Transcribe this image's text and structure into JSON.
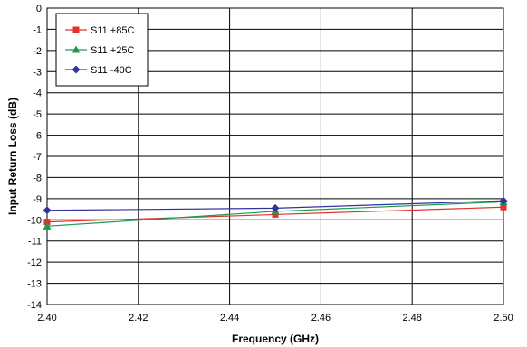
{
  "chart_data": {
    "type": "line",
    "title": "",
    "xlabel": "Frequency (GHz)",
    "ylabel": "Input Return Loss (dB)",
    "xlim": [
      2.4,
      2.5
    ],
    "ylim": [
      -14,
      0
    ],
    "xticks": [
      "2.40",
      "2.42",
      "2.44",
      "2.46",
      "2.48",
      "2.50"
    ],
    "xtick_values": [
      2.4,
      2.42,
      2.44,
      2.46,
      2.48,
      2.5
    ],
    "yticks": [
      "0",
      "-1",
      "-2",
      "-3",
      "-4",
      "-5",
      "-6",
      "-7",
      "-8",
      "-9",
      "-10",
      "-11",
      "-12",
      "-13",
      "-14"
    ],
    "ytick_values": [
      0,
      -1,
      -2,
      -3,
      -4,
      -5,
      -6,
      -7,
      -8,
      -9,
      -10,
      -11,
      -12,
      -13,
      -14
    ],
    "grid": true,
    "legend_position": "top-left",
    "x": [
      2.4,
      2.45,
      2.5
    ],
    "series": [
      {
        "name": "S11 +85C",
        "color": "#e03030",
        "marker": "square",
        "values": [
          -10.1,
          -9.75,
          -9.4
        ]
      },
      {
        "name": "S11 +25C",
        "color": "#1a9a50",
        "marker": "triangle",
        "values": [
          -10.3,
          -9.6,
          -9.15
        ]
      },
      {
        "name": "S11 -40C",
        "color": "#3333a0",
        "marker": "diamond",
        "values": [
          -9.55,
          -9.45,
          -9.1
        ]
      }
    ]
  }
}
